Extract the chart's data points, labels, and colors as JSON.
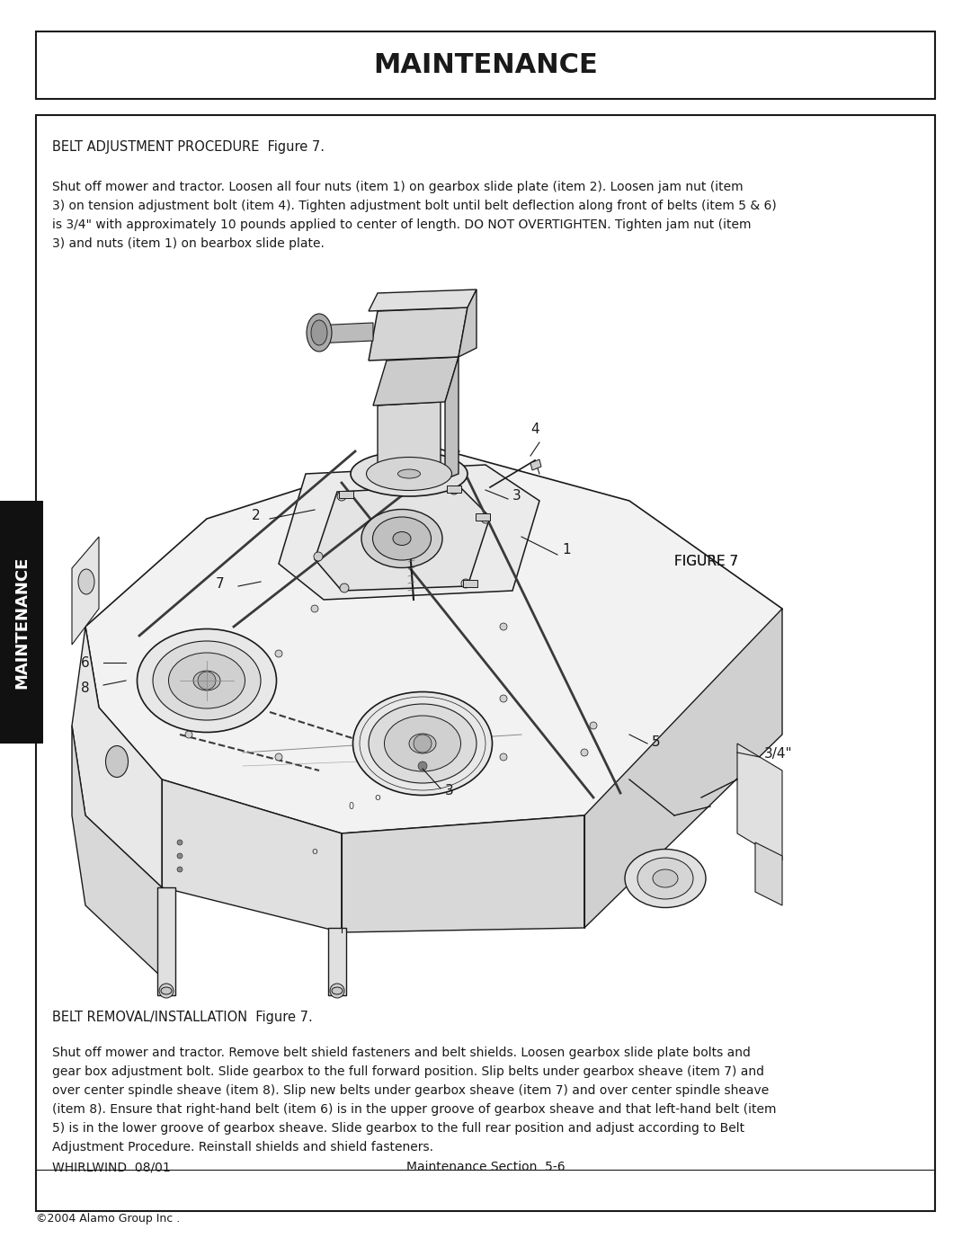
{
  "page_bg": "#ffffff",
  "title_text": "MAINTENANCE",
  "title_fontsize": 20,
  "section_header1": "BELT ADJUSTMENT PROCEDURE  Figure 7.",
  "para1_lines": [
    "Shut off mower and tractor. Loosen all four nuts (item 1) on gearbox slide plate (item 2). Loosen jam nut (item",
    "3) on tension adjustment bolt (item 4). Tighten adjustment bolt until belt deflection along front of belts (item 5 & 6)",
    "is 3/4\" with approximately 10 pounds applied to center of length. DO NOT OVERTIGHTEN. Tighten jam nut (item",
    "3) and nuts (item 1) on bearbox slide plate."
  ],
  "figure_label": "FIGURE 7",
  "section_header2": "BELT REMOVAL/INSTALLATION  Figure 7.",
  "para2_lines": [
    "Shut off mower and tractor. Remove belt shield fasteners and belt shields. Loosen gearbox slide plate bolts and",
    "gear box adjustment bolt. Slide gearbox to the full forward position. Slip belts under gearbox sheave (item 7) and",
    "over center spindle sheave (item 8). Slip new belts under gearbox sheave (item 7) and over center spindle sheave",
    "(item 8). Ensure that right-hand belt (item 6) is in the upper groove of gearbox sheave and that left-hand belt (item",
    "5) is in the lower groove of gearbox sheave. Slide gearbox to the full rear position and adjust according to Belt",
    "Adjustment Procedure. Reinstall shields and shield fasteners."
  ],
  "footer_left": "WHIRLWIND  08/01",
  "footer_center": "Maintenance Section  5-6",
  "copyright_text": "©2004 Alamo Group Inc .",
  "sidebar_text": "MAINTENANCE",
  "lc": "#1a1a1a",
  "lc_light": "#888888"
}
